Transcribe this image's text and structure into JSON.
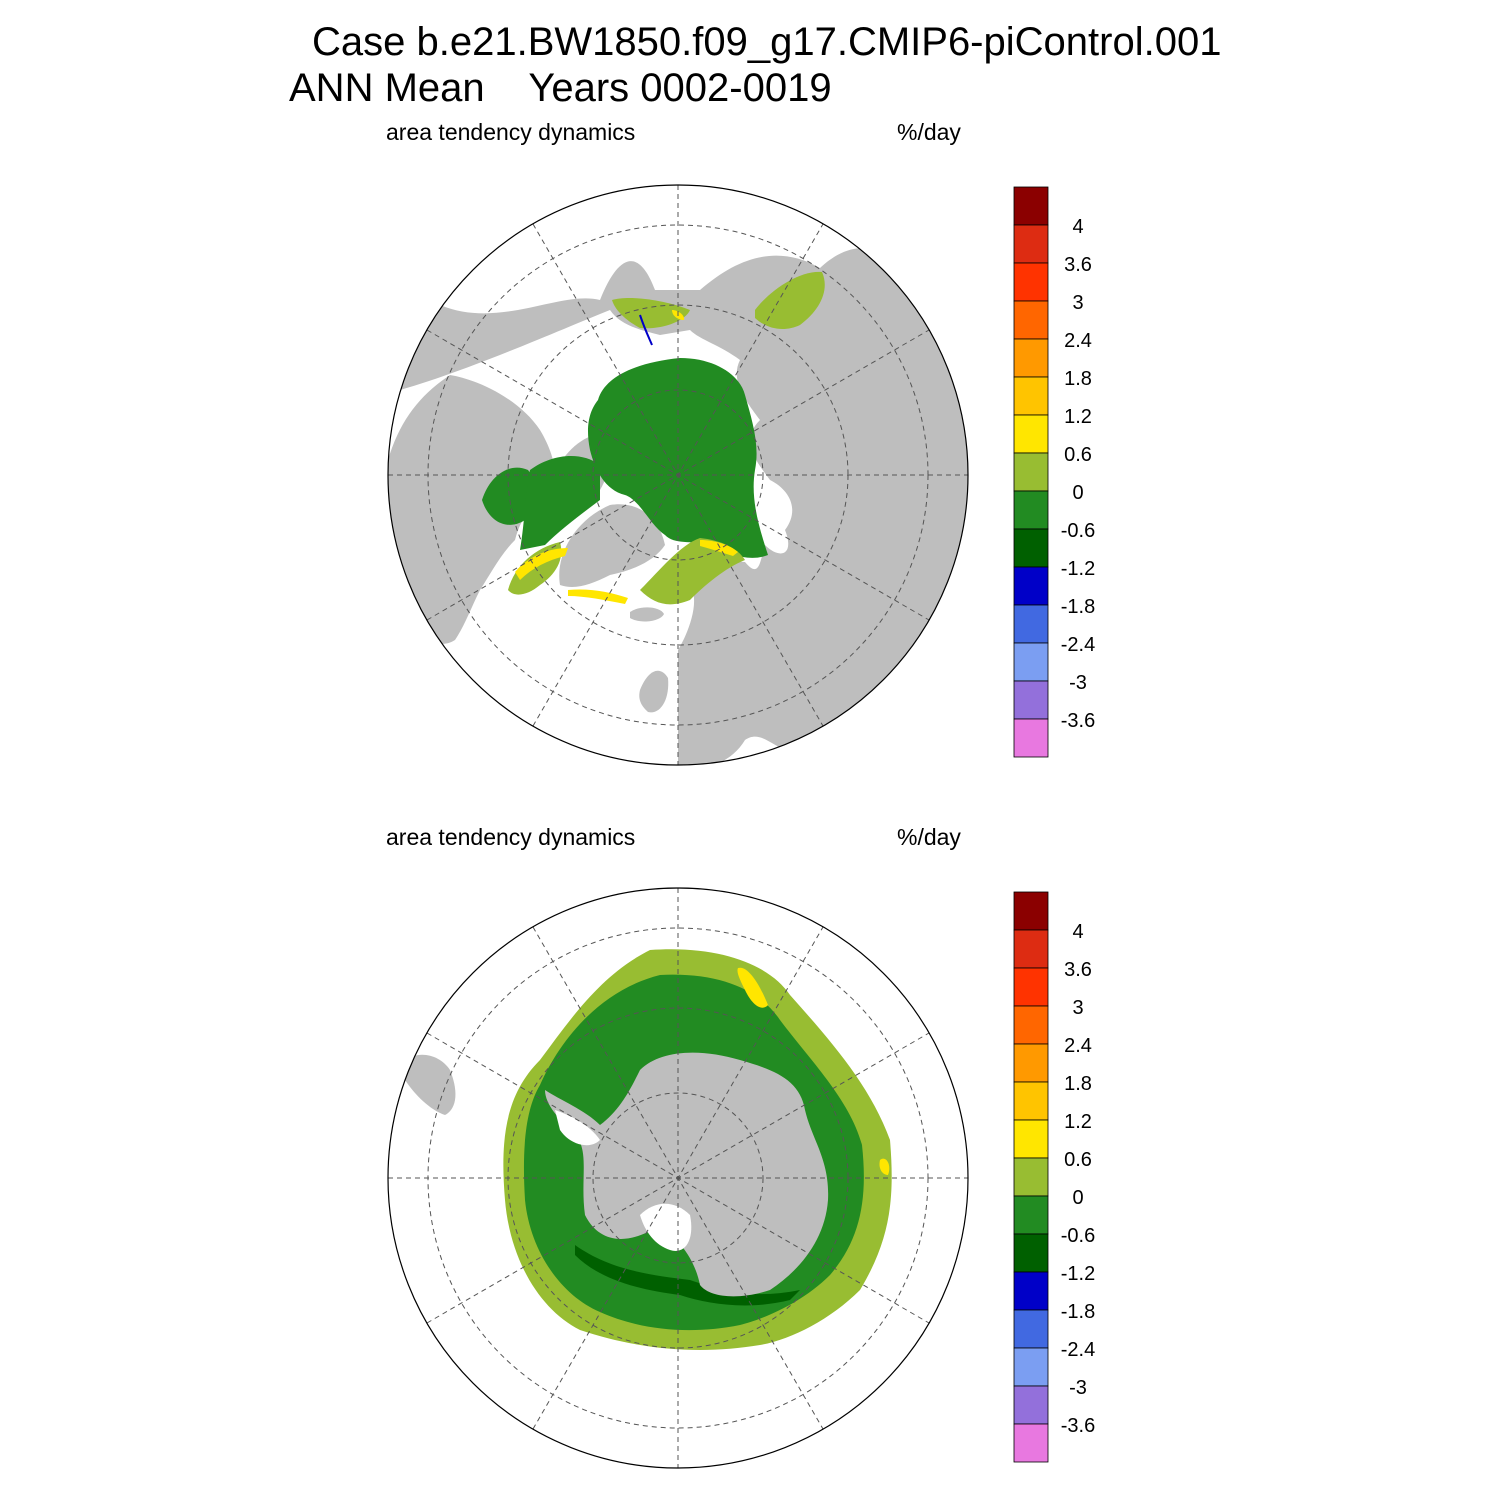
{
  "title": {
    "line1": "Case b.e21.BW1850.f09_g17.CMIP6-piControl.001",
    "line2": "ANN Mean    Years 0002-0019"
  },
  "panels": [
    {
      "id": "north",
      "variable_label": "area tendency dynamics",
      "units_label": "%/day",
      "hemisphere": "north"
    },
    {
      "id": "south",
      "variable_label": "area tendency dynamics",
      "units_label": "%/day",
      "hemisphere": "south"
    }
  ],
  "colorbar": {
    "tick_labels": [
      "4",
      "3.6",
      "3",
      "2.4",
      "1.8",
      "1.2",
      "0.6",
      "0",
      "-0.6",
      "-1.2",
      "-1.8",
      "-2.4",
      "-3",
      "-3.6"
    ],
    "colors": [
      "#8b0000",
      "#dd2c12",
      "#ff3300",
      "#ff6600",
      "#ff9900",
      "#ffc400",
      "#ffe600",
      "#98bd32",
      "#228b22",
      "#006000",
      "#0000c8",
      "#4169e1",
      "#7b9ef2",
      "#9370db",
      "#e878e0"
    ]
  },
  "map_colors": {
    "land": "#bebebe",
    "open_ocean": "#ffffff"
  }
}
